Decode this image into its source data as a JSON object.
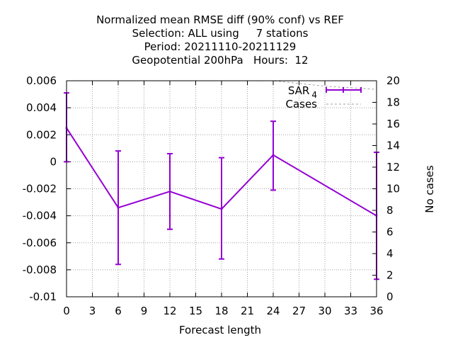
{
  "chart_data": {
    "type": "line",
    "title_lines": [
      "Normalized mean RMSE diff (90% conf) vs REF",
      "Selection: ALL using     7 stations",
      "Period: 20211110-20211129",
      "Geopotential 200hPa   Hours:  12"
    ],
    "xlabel": "Forecast length",
    "ylabel_right": "No cases",
    "xlim": [
      0,
      36
    ],
    "x_ticks": [
      0,
      3,
      6,
      9,
      12,
      15,
      18,
      21,
      24,
      27,
      30,
      33,
      36
    ],
    "x_tick_labels": [
      "0",
      "3",
      "6",
      "9",
      "12",
      "15",
      "18",
      "21",
      "24",
      "27",
      "30",
      "33",
      "36"
    ],
    "ylim_left": [
      -0.01,
      0.006
    ],
    "y_left_ticks": [
      -0.01,
      -0.008,
      -0.006,
      -0.004,
      -0.002,
      0,
      0.002,
      0.004,
      0.006
    ],
    "y_left_tick_labels": [
      "-0.01",
      "-0.008",
      "-0.006",
      "-0.004",
      "-0.002",
      "0",
      "0.002",
      "0.004",
      "0.006"
    ],
    "ylim_right": [
      0,
      20
    ],
    "y_right_ticks": [
      0,
      2,
      4,
      6,
      8,
      10,
      12,
      14,
      16,
      18,
      20
    ],
    "y_right_tick_labels": [
      "0",
      "2",
      "4",
      "6",
      "8",
      "10",
      "12",
      "14",
      "16",
      "18",
      "20"
    ],
    "grid": true,
    "legend_position": "top-right",
    "series": [
      {
        "name": "SAR",
        "name_subscript": "4",
        "color": "#9400d3",
        "x": [
          0,
          6,
          12,
          18,
          24,
          36
        ],
        "y": [
          0.0025,
          -0.0034,
          -0.0022,
          -0.0035,
          0.0005,
          -0.004
        ],
        "err_low": [
          0.0,
          -0.0076,
          -0.005,
          -0.0072,
          -0.0021,
          -0.0087
        ],
        "err_high": [
          0.0051,
          0.0008,
          0.0006,
          0.0003,
          0.003,
          0.0007
        ]
      },
      {
        "name": "Cases",
        "color": "#a0a0a0",
        "axis": "right",
        "x": [
          0,
          6,
          12,
          18,
          24,
          30,
          36
        ],
        "y": [
          20,
          20,
          20,
          20,
          20,
          19.5,
          19.2
        ]
      }
    ]
  }
}
